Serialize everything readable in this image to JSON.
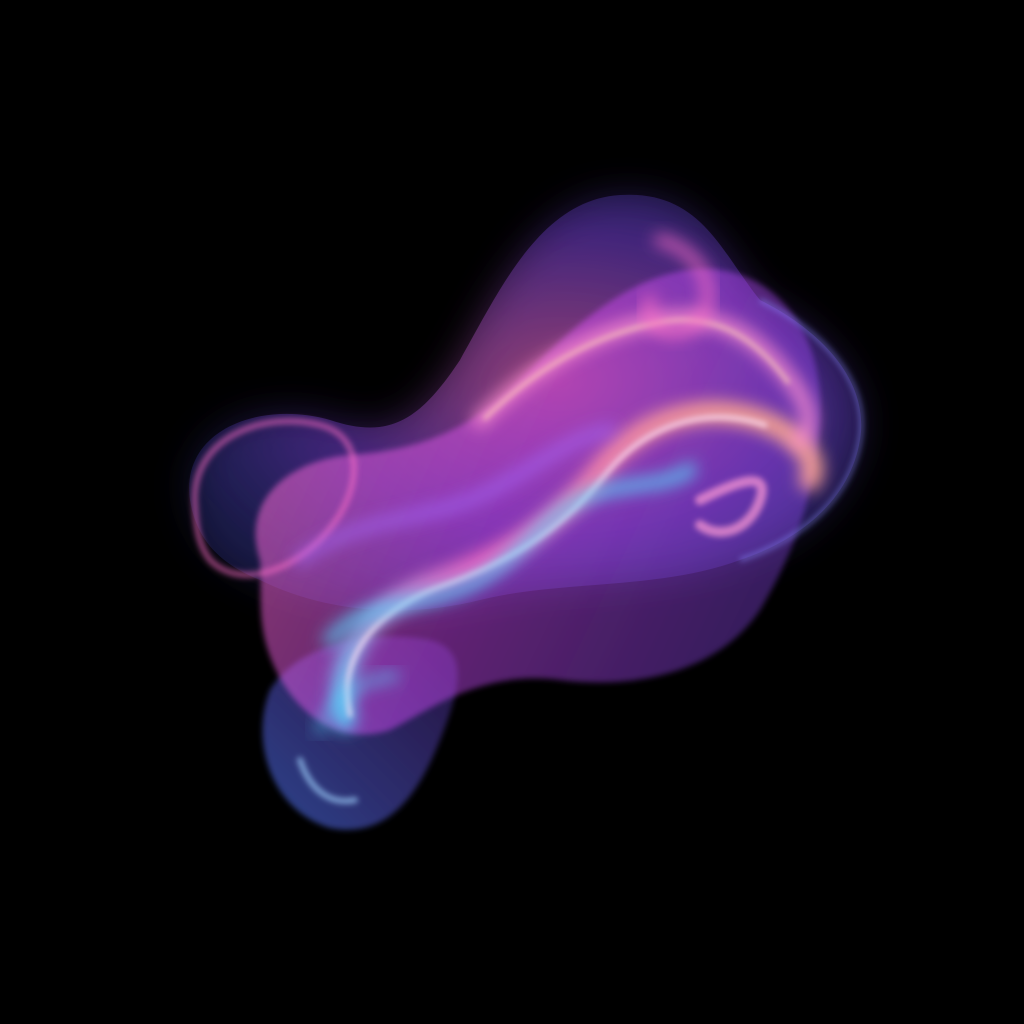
{
  "scene": {
    "background_color": "#000000",
    "palette": {
      "pink": "#ff6ec7",
      "hot_pink": "#ff3fa4",
      "magenta": "#d94bff",
      "violet": "#8a4dff",
      "indigo": "#5a5cff",
      "blue": "#4f7dff",
      "cyan": "#56d8ff",
      "peach": "#ffb08a"
    }
  }
}
